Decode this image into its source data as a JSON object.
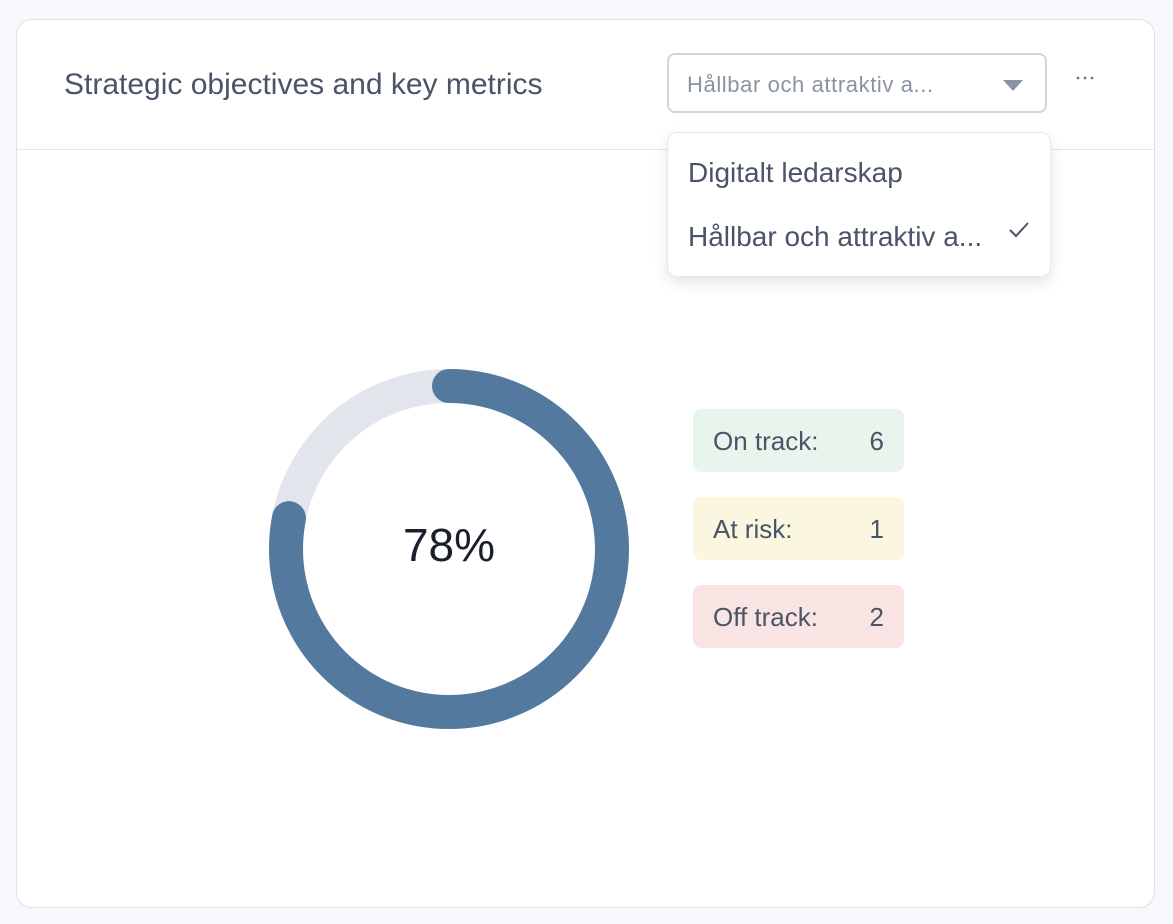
{
  "header": {
    "title": "Strategic objectives and key metrics",
    "dropdown": {
      "selected": "Hållbar och attraktiv a..."
    }
  },
  "menu": {
    "options": [
      "Digitalt ledarskap",
      "Hållbar och attraktiv a..."
    ],
    "checked": 1
  },
  "gauge": {
    "value": 78,
    "label": "78%",
    "color": "#53799f",
    "track_color": "#e2e6ec"
  },
  "status": [
    {
      "label": "On track:",
      "count": 6,
      "color": "#e8f5ec"
    },
    {
      "label": "At risk:",
      "count": 1,
      "color": "#fbf6df"
    },
    {
      "label": "Off track:",
      "count": 2,
      "color": "#f8e5e3"
    }
  ]
}
